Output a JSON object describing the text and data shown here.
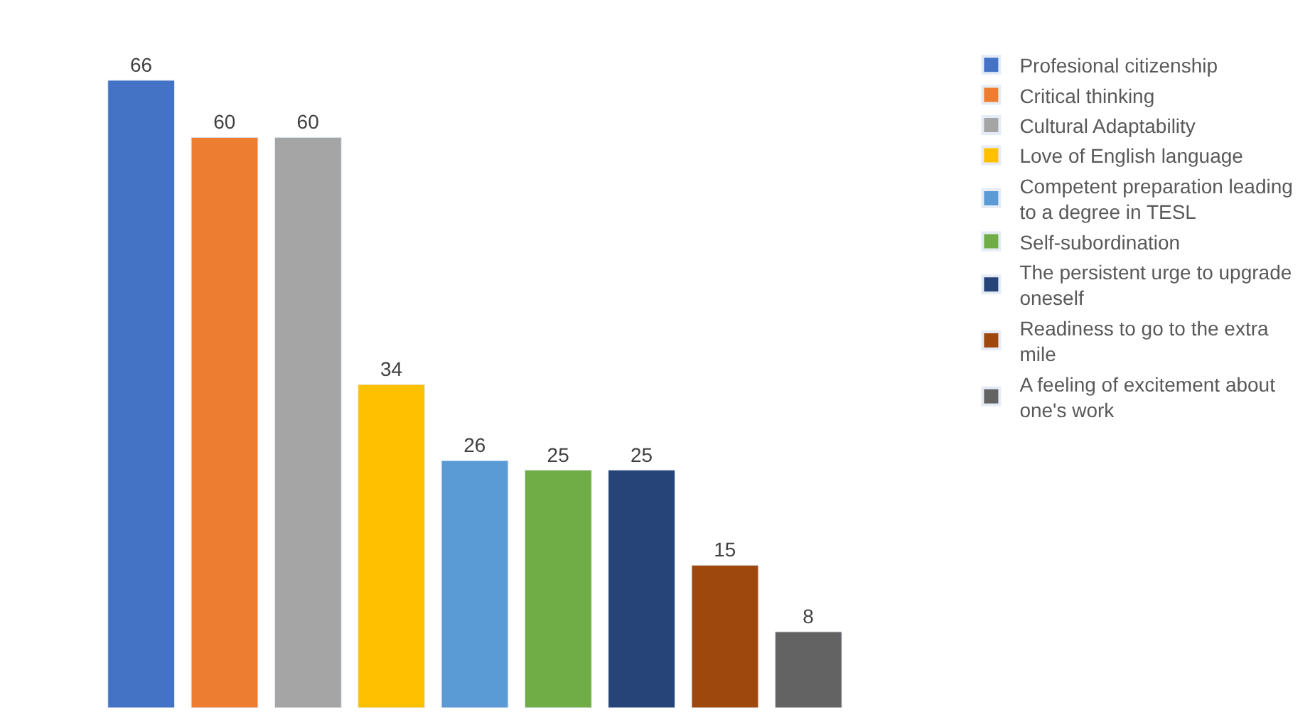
{
  "chart_data": {
    "type": "bar",
    "categories": [
      null,
      null,
      null,
      null,
      null,
      null,
      null,
      null,
      null
    ],
    "series": [
      {
        "name": "Profesional citizenship",
        "color": "#4472c4",
        "values": [
          66,
          null,
          null,
          null,
          null,
          null,
          null,
          null,
          null
        ]
      },
      {
        "name": "Critical thinking",
        "color": "#ed7d31",
        "values": [
          null,
          60,
          null,
          null,
          null,
          null,
          null,
          null,
          null
        ]
      },
      {
        "name": "Cultural Adaptability",
        "color": "#a5a5a5",
        "values": [
          null,
          null,
          60,
          null,
          null,
          null,
          null,
          null,
          null
        ]
      },
      {
        "name": "Love of English language",
        "color": "#ffc000",
        "values": [
          null,
          null,
          null,
          34,
          null,
          null,
          null,
          null,
          null
        ]
      },
      {
        "name": "Competent preparation leading to a degree in TESL",
        "color": "#5b9bd5",
        "values": [
          null,
          null,
          null,
          null,
          26,
          null,
          null,
          null,
          null
        ]
      },
      {
        "name": "Self-subordination",
        "color": "#70ad47",
        "values": [
          null,
          null,
          null,
          null,
          null,
          25,
          null,
          null,
          null
        ]
      },
      {
        "name": "The persistent urge to upgrade oneself",
        "color": "#264478",
        "values": [
          null,
          null,
          null,
          null,
          null,
          null,
          25,
          null,
          null
        ]
      },
      {
        "name": "Readiness to go to the extra mile",
        "color": "#9e480e",
        "values": [
          null,
          null,
          null,
          null,
          null,
          null,
          null,
          15,
          null
        ]
      },
      {
        "name": "A feeling of excitement about one's work",
        "color": "#636363",
        "values": [
          null,
          null,
          null,
          null,
          null,
          null,
          null,
          null,
          8
        ]
      }
    ],
    "stacked": true,
    "data_labels": true,
    "legend": "right"
  }
}
